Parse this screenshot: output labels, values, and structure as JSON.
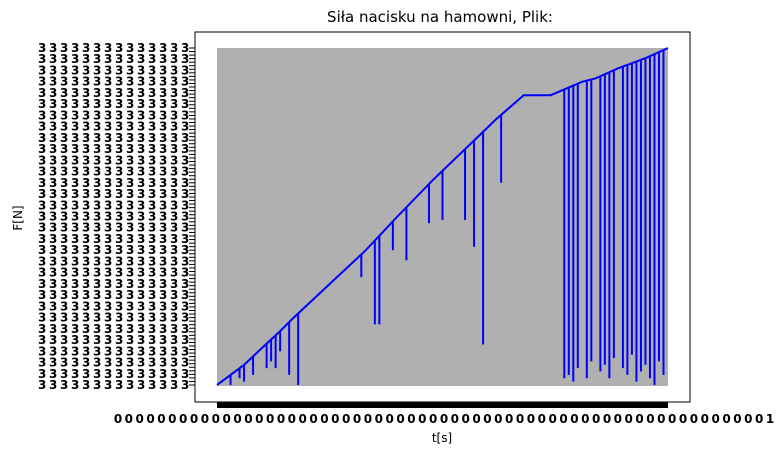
{
  "chart_data": {
    "type": "line",
    "title": "Siła nacisku na hamowni, Plik:",
    "xlabel": "t[s]",
    "ylabel": "F[N]",
    "xlim": [
      0,
      1
    ],
    "ylim": [
      0,
      1
    ],
    "grid": false,
    "legend": "none",
    "plot_background": "#b0b0b0",
    "series": [
      {
        "color": "#0000ff",
        "x": [
          0.0,
          0.02,
          0.06,
          0.1,
          0.14,
          0.17,
          0.25,
          0.33,
          0.4,
          0.48,
          0.55,
          0.62,
          0.68,
          0.74,
          0.81,
          0.84,
          0.89,
          0.95,
          1.0
        ],
        "y": [
          0.0,
          0.02,
          0.06,
          0.11,
          0.16,
          0.2,
          0.3,
          0.4,
          0.5,
          0.61,
          0.7,
          0.79,
          0.86,
          0.86,
          0.9,
          0.91,
          0.94,
          0.97,
          1.0
        ],
        "dips": [
          [
            0.03,
            0.0
          ],
          [
            0.05,
            0.02
          ],
          [
            0.06,
            0.01
          ],
          [
            0.08,
            0.03
          ],
          [
            0.11,
            0.05
          ],
          [
            0.12,
            0.07
          ],
          [
            0.13,
            0.05
          ],
          [
            0.14,
            0.1
          ],
          [
            0.16,
            0.03
          ],
          [
            0.18,
            0.0
          ],
          [
            0.32,
            0.32
          ],
          [
            0.35,
            0.18
          ],
          [
            0.36,
            0.18
          ],
          [
            0.39,
            0.4
          ],
          [
            0.42,
            0.37
          ],
          [
            0.47,
            0.48
          ],
          [
            0.5,
            0.49
          ],
          [
            0.55,
            0.49
          ],
          [
            0.57,
            0.41
          ],
          [
            0.59,
            0.12
          ],
          [
            0.63,
            0.6
          ],
          [
            0.77,
            0.02
          ],
          [
            0.78,
            0.03
          ],
          [
            0.79,
            0.01
          ],
          [
            0.8,
            0.05
          ],
          [
            0.82,
            0.02
          ],
          [
            0.83,
            0.07
          ],
          [
            0.85,
            0.04
          ],
          [
            0.86,
            0.06
          ],
          [
            0.87,
            0.02
          ],
          [
            0.88,
            0.08
          ],
          [
            0.9,
            0.05
          ],
          [
            0.91,
            0.03
          ],
          [
            0.92,
            0.09
          ],
          [
            0.93,
            0.01
          ],
          [
            0.94,
            0.04
          ],
          [
            0.95,
            0.06
          ],
          [
            0.96,
            0.02
          ],
          [
            0.97,
            0.0
          ],
          [
            0.98,
            0.07
          ],
          [
            0.99,
            0.03
          ]
        ]
      }
    ]
  }
}
